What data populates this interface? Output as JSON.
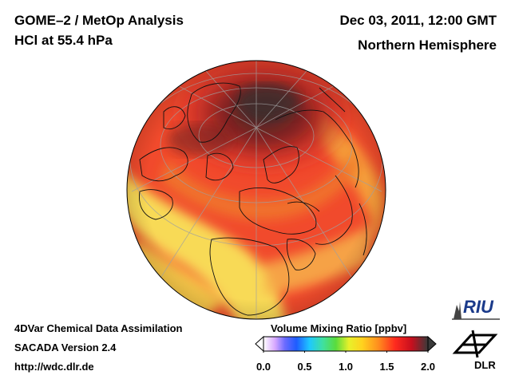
{
  "header": {
    "title": "GOME–2 / MetOp Analysis",
    "quantity": "HCl at 55.4 hPa",
    "datetime": "Dec 03, 2011, 12:00 GMT",
    "region": "Northern Hemisphere"
  },
  "footer": {
    "line1": "4DVar Chemical Data Assimilation",
    "line2": "SACADA Version 2.4",
    "url": "http://wdc.dlr.de"
  },
  "colorbar": {
    "title": "Volume Mixing Ratio [ppbv]",
    "ticks": [
      "0.0",
      "0.5",
      "1.0",
      "1.5",
      "2.0"
    ],
    "range": [
      0.0,
      2.0
    ],
    "colors": [
      "#ffffff",
      "#d8a8ff",
      "#6b6bff",
      "#1e5cff",
      "#1ec8ff",
      "#3fe0a0",
      "#5adc3c",
      "#e8f02a",
      "#ffd21e",
      "#ff8c1e",
      "#ff2a1e",
      "#c80f1e",
      "#3a3a3a"
    ]
  },
  "logos": {
    "riu": "RIU",
    "dlr": "DLR"
  },
  "map": {
    "projection": "orthographic, North Pole view",
    "colors": {
      "high": "#4a2a28",
      "red": "#e8262a",
      "orange": "#f4602a",
      "yellow": "#f8e050",
      "coast": "#000000",
      "grid": "#9a9a9a"
    }
  }
}
